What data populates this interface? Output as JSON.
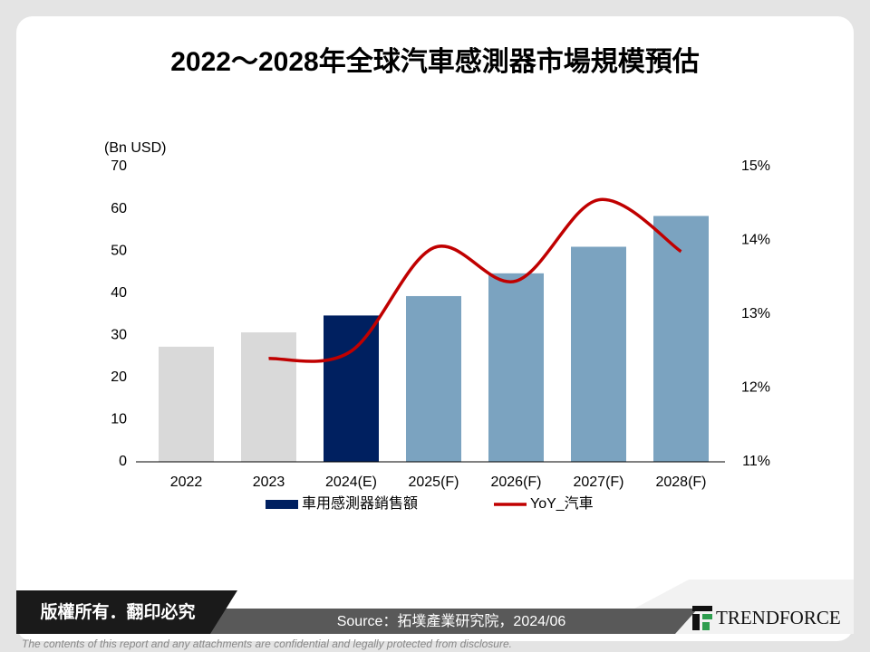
{
  "chart_data": {
    "type": "bar_line",
    "title": "2022～2028年全球汽車感測器市場規模預估",
    "ylabel": "(Bn USD)",
    "categories": [
      "2022",
      "2023",
      "2024(E)",
      "2025(F)",
      "2026(F)",
      "2027(F)",
      "2028(F)"
    ],
    "series": [
      {
        "name": "車用感測器銷售額",
        "type": "bar",
        "color": "#002060",
        "bar_colors": [
          "#d9d9d9",
          "#d9d9d9",
          "#002060",
          "#7ba3c0",
          "#7ba3c0",
          "#7ba3c0",
          "#7ba3c0"
        ],
        "values": [
          27.3,
          30.7,
          34.7,
          39.3,
          44.7,
          51.0,
          58.3
        ]
      },
      {
        "name": "YoY_汽車",
        "type": "line",
        "color": "#c00000",
        "axis": "y2",
        "values": [
          null,
          12.4,
          12.5,
          13.9,
          13.45,
          14.55,
          13.85
        ]
      }
    ],
    "ylim": [
      0,
      70
    ],
    "yticks": [
      0,
      10,
      20,
      30,
      40,
      50,
      60,
      70
    ],
    "y2lim": [
      11,
      15
    ],
    "y2ticks": [
      {
        "value": 11,
        "label": "11%"
      },
      {
        "value": 12,
        "label": "12%"
      },
      {
        "value": 13,
        "label": "13%"
      },
      {
        "value": 14,
        "label": "14%"
      },
      {
        "value": 15,
        "label": "15%"
      }
    ],
    "legend": "bottom"
  },
  "footer": {
    "copyright": "版權所有．翻印必究",
    "source": "Source：拓墣產業研究院，2024/06",
    "brand": "TRENDFORCE",
    "disclaimer": "The contents of this report and any attachments are confidential and legally protected from disclosure."
  }
}
